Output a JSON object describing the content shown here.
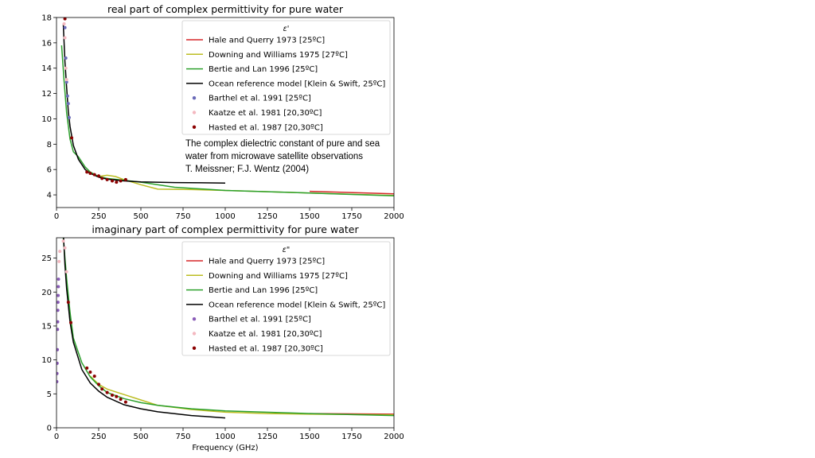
{
  "chart_data": [
    {
      "type": "line",
      "title": "real part of complex permittivity for pure water",
      "xlabel": "",
      "ylabel": "",
      "xlim": [
        0,
        2000
      ],
      "ylim": [
        3,
        18
      ],
      "xticks": [
        0,
        250,
        500,
        750,
        1000,
        1250,
        1500,
        1750,
        2000
      ],
      "yticks": [
        4,
        6,
        8,
        10,
        12,
        14,
        16,
        18
      ],
      "legend_title": "ε'",
      "legend_position": "top-right",
      "series": [
        {
          "name": "Hale and Querry 1973 [25ºC]",
          "kind": "line",
          "color": "#d62728",
          "x": [
            1500,
            2000
          ],
          "y": [
            4.28,
            4.08
          ]
        },
        {
          "name": "Downing and Williams 1975 [27ºC]",
          "kind": "line",
          "color": "#bcbd22",
          "x": [
            200,
            250,
            300,
            350,
            400,
            500,
            600,
            800,
            1000,
            1250,
            1500,
            2000
          ],
          "y": [
            5.7,
            5.45,
            5.55,
            5.45,
            5.2,
            4.8,
            4.45,
            4.42,
            4.35,
            4.25,
            4.15,
            3.95
          ]
        },
        {
          "name": "Bertie and Lan 1996 [25ºC]",
          "kind": "line",
          "color": "#2ca02c",
          "x": [
            30,
            45,
            60,
            80,
            100,
            130,
            170,
            200,
            250,
            300,
            400,
            500,
            700,
            1000,
            1500,
            2000
          ],
          "y": [
            15.8,
            13.0,
            10.5,
            8.4,
            7.4,
            7.0,
            6.2,
            5.8,
            5.45,
            5.3,
            5.15,
            5.0,
            4.6,
            4.35,
            4.15,
            3.92
          ]
        },
        {
          "name": "Ocean reference model [Klein & Swift, 25ºC]",
          "kind": "line",
          "color": "#000000",
          "x": [
            40,
            50,
            60,
            70,
            80,
            100,
            130,
            170,
            200,
            250,
            300,
            400,
            500,
            700,
            1000
          ],
          "y": [
            17.5,
            14.5,
            12.5,
            10.6,
            9.4,
            7.9,
            6.8,
            6.0,
            5.7,
            5.4,
            5.25,
            5.1,
            5.03,
            4.97,
            4.93
          ]
        },
        {
          "name": "Barthel et al. 1991 [25ºC]",
          "kind": "scatter",
          "color": "#6a6ab8",
          "x": [
            50,
            55,
            60,
            65,
            70,
            75
          ],
          "y": [
            17.2,
            14.8,
            12.9,
            11.8,
            11.2,
            10.1
          ]
        },
        {
          "name": "Kaatze et al. 1981 [20,30ºC]",
          "kind": "scatter",
          "color": "#f4b8c0",
          "x": [
            45,
            50,
            55,
            60
          ],
          "y": [
            17.5,
            16.4,
            14.0,
            13.1
          ]
        },
        {
          "name": "Hasted et al. 1987 [20,30ºC]",
          "kind": "scatter",
          "color": "#8b0000",
          "x": [
            50,
            90,
            180,
            200,
            225,
            250,
            270,
            300,
            330,
            355,
            380,
            410
          ],
          "y": [
            17.9,
            8.5,
            5.8,
            5.7,
            5.6,
            5.5,
            5.3,
            5.2,
            5.1,
            5.0,
            5.1,
            5.2
          ]
        }
      ]
    },
    {
      "type": "line",
      "title": "imaginary part of complex permittivity for pure water",
      "xlabel": "Frequency (GHz)",
      "ylabel": "",
      "xlim": [
        0,
        2000
      ],
      "ylim": [
        0,
        28
      ],
      "xticks": [
        0,
        250,
        500,
        750,
        1000,
        1250,
        1500,
        1750,
        2000
      ],
      "yticks": [
        0,
        5,
        10,
        15,
        20,
        25
      ],
      "legend_title": "ε\"",
      "legend_position": "top-right",
      "series": [
        {
          "name": "Hale and Querry 1973 [25ºC]",
          "kind": "line",
          "color": "#d62728",
          "x": [
            1500,
            2000
          ],
          "y": [
            2.1,
            2.0
          ]
        },
        {
          "name": "Downing and Williams 1975 [27ºC]",
          "kind": "line",
          "color": "#bcbd22",
          "x": [
            200,
            250,
            300,
            350,
            400,
            500,
            600,
            800,
            1000,
            1250,
            1500,
            2000
          ],
          "y": [
            7.6,
            6.4,
            5.7,
            5.3,
            4.9,
            4.1,
            3.3,
            2.7,
            2.3,
            2.1,
            2.0,
            1.9
          ]
        },
        {
          "name": "Bertie and Lan 1996 [25ºC]",
          "kind": "line",
          "color": "#2ca02c",
          "x": [
            40,
            60,
            80,
            100,
            150,
            200,
            250,
            300,
            400,
            500,
            600,
            800,
            1000,
            1500,
            2000
          ],
          "y": [
            28,
            22.0,
            17.0,
            13.2,
            9.6,
            7.5,
            6.2,
            5.2,
            4.3,
            3.7,
            3.3,
            2.8,
            2.5,
            2.1,
            1.8
          ]
        },
        {
          "name": "Ocean reference model [Klein & Swift, 25ºC]",
          "kind": "line",
          "color": "#000000",
          "x": [
            42,
            50,
            60,
            80,
            100,
            150,
            200,
            250,
            300,
            400,
            500,
            600,
            800,
            1000
          ],
          "y": [
            28,
            24.0,
            20.5,
            15.6,
            12.6,
            8.6,
            6.6,
            5.4,
            4.5,
            3.4,
            2.8,
            2.35,
            1.8,
            1.45
          ]
        },
        {
          "name": "Barthel et al. 1991 [25ºC]",
          "kind": "scatter",
          "color": "#8a5cb8",
          "x": [
            2,
            3,
            4,
            5,
            6,
            7,
            8,
            9,
            10,
            11,
            12
          ],
          "y": [
            6.8,
            8.0,
            9.5,
            11.5,
            14.5,
            15.6,
            17.3,
            18.5,
            19.5,
            20.8,
            21.9
          ]
        },
        {
          "name": "Kaatze et al. 1981 [20,30ºC]",
          "kind": "scatter",
          "color": "#f4b8c0",
          "x": [
            15,
            20,
            40,
            50,
            60
          ],
          "y": [
            24.5,
            26.0,
            27.5,
            26.5,
            23.0
          ]
        },
        {
          "name": "Hasted et al. 1987 [20,30ºC]",
          "kind": "scatter",
          "color": "#8b0000",
          "x": [
            70,
            85,
            180,
            200,
            225,
            250,
            270,
            300,
            330,
            355,
            380,
            410
          ],
          "y": [
            18.5,
            15.5,
            8.8,
            8.2,
            7.6,
            6.4,
            5.7,
            5.2,
            4.8,
            4.6,
            4.2,
            3.8
          ]
        }
      ]
    }
  ],
  "reference_note": {
    "line1": "The complex dielectric constant of pure and sea",
    "line2": "water from microwave satellite observations",
    "line3": "T. Meissner; F.J. Wentz (2004)"
  }
}
